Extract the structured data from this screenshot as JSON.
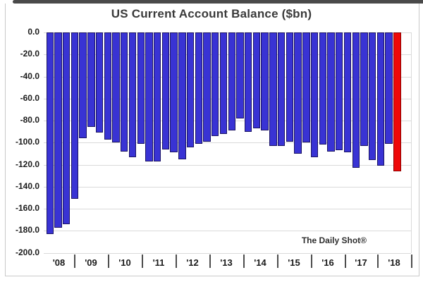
{
  "chart": {
    "title": "US Current Account Balance ($bn)",
    "watermark": "The Daily Shot®"
  },
  "chart_data": {
    "type": "bar",
    "title": "US Current Account Balance ($bn)",
    "xlabel": "",
    "ylabel": "",
    "frequency": "quarterly",
    "ylim": [
      -200,
      0
    ],
    "grid": "horizontal",
    "legend": "none",
    "y_tick_labels": [
      "0.0",
      "-20.0",
      "-40.0",
      "-60.0",
      "-80.0",
      "-100.0",
      "-120.0",
      "-140.0",
      "-160.0",
      "-180.0",
      "-200.0"
    ],
    "y_tick_values": [
      0,
      -20,
      -40,
      -60,
      -80,
      -100,
      -120,
      -140,
      -160,
      -180,
      -200
    ],
    "x_tick_labels": [
      "'08",
      "'09",
      "'10",
      "'11",
      "'12",
      "'13",
      "'14",
      "'15",
      "'16",
      "'17",
      "'18"
    ],
    "values": [
      -183,
      -177,
      -174,
      -151,
      -96,
      -86,
      -91,
      -97,
      -100,
      -108,
      -113,
      -101,
      -117,
      -117,
      -106,
      -109,
      -115,
      -104,
      -101,
      -99,
      -94,
      -92,
      -89,
      -78,
      -90,
      -87,
      -89,
      -103,
      -103,
      -99,
      -110,
      -100,
      -113,
      -102,
      -108,
      -107,
      -109,
      -123,
      -103,
      -116,
      -121,
      -101,
      -126
    ],
    "highlight_last_bar": true,
    "annotations": [
      "The Daily Shot®"
    ],
    "colors": {
      "bar_fill": "#3933d4",
      "bar_border": "#1b1464",
      "highlight_fill": "#ee0909",
      "highlight_border": "#8a0000",
      "gridline": "#dadada",
      "axis_text": "#1a1a1a",
      "title_text": "#3a3a3a"
    }
  }
}
